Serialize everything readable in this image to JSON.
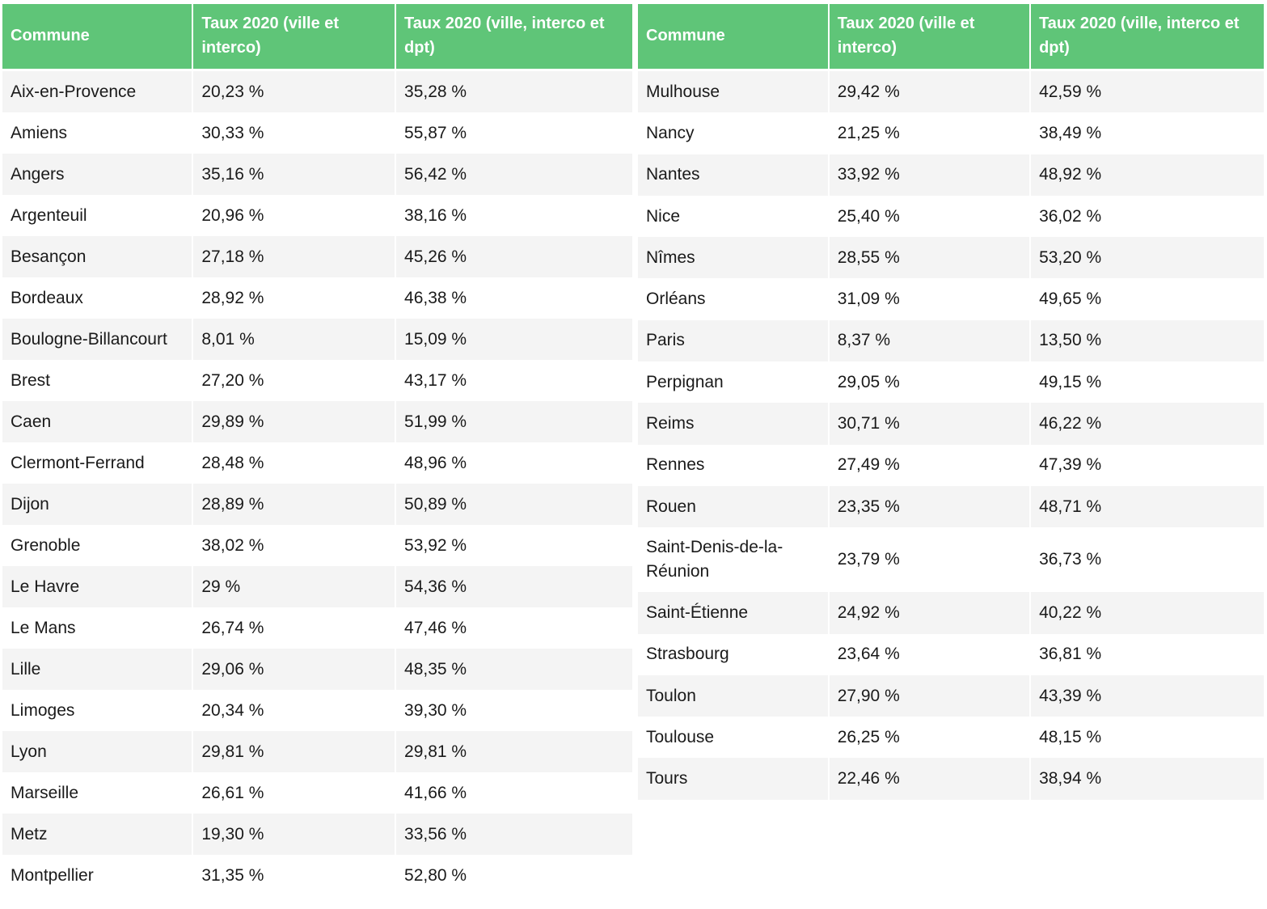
{
  "headers": {
    "commune": "Commune",
    "rate_city_interco": "Taux 2020 (ville et interco)",
    "rate_city_interco_dept": "Taux 2020 (ville, interco et dpt)"
  },
  "left_rows": [
    {
      "commune": "Aix-en-Provence",
      "rate1": "20,23 %",
      "rate2": "35,28 %"
    },
    {
      "commune": "Amiens",
      "rate1": "30,33 %",
      "rate2": "55,87 %"
    },
    {
      "commune": "Angers",
      "rate1": "35,16 %",
      "rate2": "56,42 %"
    },
    {
      "commune": "Argenteuil",
      "rate1": "20,96 %",
      "rate2": "38,16 %"
    },
    {
      "commune": "Besançon",
      "rate1": "27,18 %",
      "rate2": "45,26 %"
    },
    {
      "commune": "Bordeaux",
      "rate1": "28,92 %",
      "rate2": "46,38 %"
    },
    {
      "commune": "Boulogne-Billancourt",
      "rate1": "8,01 %",
      "rate2": "15,09 %"
    },
    {
      "commune": "Brest",
      "rate1": "27,20 %",
      "rate2": "43,17 %"
    },
    {
      "commune": "Caen",
      "rate1": "29,89 %",
      "rate2": "51,99 %"
    },
    {
      "commune": "Clermont-Ferrand",
      "rate1": "28,48 %",
      "rate2": "48,96 %"
    },
    {
      "commune": "Dijon",
      "rate1": "28,89 %",
      "rate2": "50,89 %"
    },
    {
      "commune": "Grenoble",
      "rate1": "38,02 %",
      "rate2": "53,92 %"
    },
    {
      "commune": "Le Havre",
      "rate1": "29 %",
      "rate2": "54,36 %"
    },
    {
      "commune": "Le Mans",
      "rate1": "26,74 %",
      "rate2": "47,46 %"
    },
    {
      "commune": "Lille",
      "rate1": "29,06 %",
      "rate2": "48,35 %"
    },
    {
      "commune": "Limoges",
      "rate1": "20,34 %",
      "rate2": "39,30 %"
    },
    {
      "commune": "Lyon",
      "rate1": "29,81 %",
      "rate2": "29,81 %"
    },
    {
      "commune": "Marseille",
      "rate1": "26,61 %",
      "rate2": "41,66 %"
    },
    {
      "commune": "Metz",
      "rate1": "19,30 %",
      "rate2": "33,56 %"
    },
    {
      "commune": "Montpellier",
      "rate1": "31,35 %",
      "rate2": "52,80 %"
    }
  ],
  "right_rows": [
    {
      "commune": "Mulhouse",
      "rate1": "29,42 %",
      "rate2": "42,59 %"
    },
    {
      "commune": "Nancy",
      "rate1": "21,25 %",
      "rate2": "38,49 %"
    },
    {
      "commune": "Nantes",
      "rate1": "33,92 %",
      "rate2": "48,92 %"
    },
    {
      "commune": "Nice",
      "rate1": "25,40 %",
      "rate2": "36,02 %"
    },
    {
      "commune": "Nîmes",
      "rate1": "28,55 %",
      "rate2": "53,20 %"
    },
    {
      "commune": "Orléans",
      "rate1": "31,09 %",
      "rate2": "49,65 %"
    },
    {
      "commune": "Paris",
      "rate1": "8,37 %",
      "rate2": "13,50 %"
    },
    {
      "commune": "Perpignan",
      "rate1": "29,05 %",
      "rate2": "49,15 %"
    },
    {
      "commune": "Reims",
      "rate1": "30,71 %",
      "rate2": "46,22 %"
    },
    {
      "commune": "Rennes",
      "rate1": "27,49 %",
      "rate2": "47,39 %"
    },
    {
      "commune": "Rouen",
      "rate1": "23,35 %",
      "rate2": "48,71 %"
    },
    {
      "commune": "Saint-Denis-de-la-Réunion",
      "rate1": "23,79 %",
      "rate2": "36,73 %"
    },
    {
      "commune": "Saint-Étienne",
      "rate1": "24,92 %",
      "rate2": "40,22 %"
    },
    {
      "commune": "Strasbourg",
      "rate1": "23,64 %",
      "rate2": "36,81 %"
    },
    {
      "commune": "Toulon",
      "rate1": "27,90 %",
      "rate2": "43,39 %"
    },
    {
      "commune": "Toulouse",
      "rate1": "26,25 %",
      "rate2": "48,15 %"
    },
    {
      "commune": "Tours",
      "rate1": "22,46 %",
      "rate2": "38,94 %"
    }
  ]
}
